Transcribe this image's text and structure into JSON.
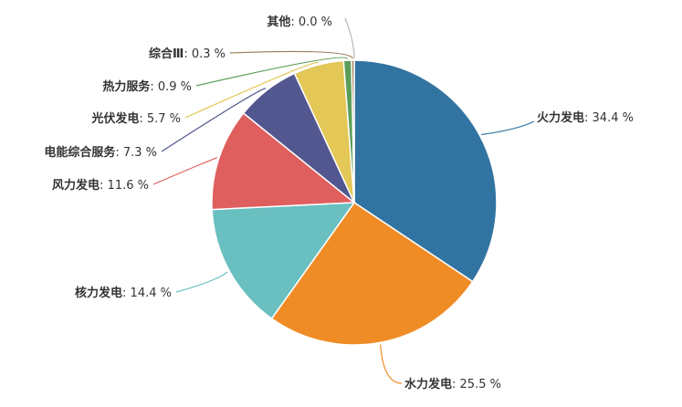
{
  "chart_data": {
    "type": "pie",
    "slices": [
      {
        "name": "火力发电",
        "value": 34.4,
        "label": "34.4 %",
        "color": "#3274a1"
      },
      {
        "name": "水力发电",
        "value": 25.5,
        "label": "25.5 %",
        "color": "#f08c26"
      },
      {
        "name": "核力发电",
        "value": 14.4,
        "label": "14.4 %",
        "color": "#6abfc0"
      },
      {
        "name": "风力发电",
        "value": 11.6,
        "label": "11.6 %",
        "color": "#df5f5f"
      },
      {
        "name": "电能综合服务",
        "value": 7.3,
        "label": "7.3 %",
        "color": "#52578f"
      },
      {
        "name": "光伏发电",
        "value": 5.7,
        "label": "5.7 %",
        "color": "#e3c757"
      },
      {
        "name": "热力服务",
        "value": 0.9,
        "label": "0.9 %",
        "color": "#5b9d58"
      },
      {
        "name": "综合Ⅲ",
        "value": 0.3,
        "label": "0.3 %",
        "color": "#9c7b57"
      },
      {
        "name": "其他",
        "value": 0.0,
        "label": "0.0 %",
        "color": "#b7b7b7"
      }
    ],
    "start_angle_deg": 0,
    "direction": "clockwise",
    "legend": "none"
  }
}
